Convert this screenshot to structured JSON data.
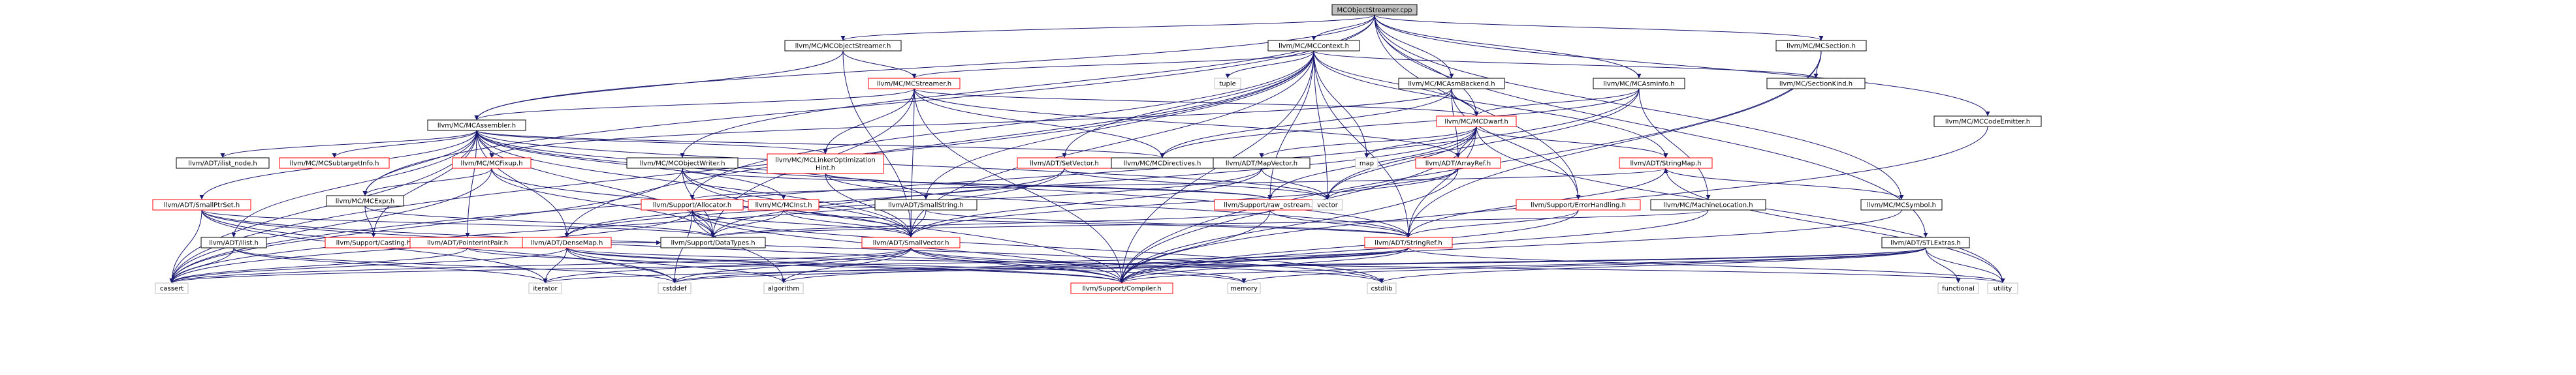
{
  "graph": {
    "colors": {
      "edge": "#191970",
      "root_fill": "#bfbfbf",
      "normal_border": "#000000",
      "red_border": "#ff0000",
      "gray_border": "#bfbfbf",
      "text": "#000000"
    },
    "nodes": [
      {
        "id": "root",
        "label": "MCObjectStreamer.cpp",
        "style": "root"
      },
      {
        "id": "mcos_h",
        "label": "llvm/MC/MCObjectStreamer.h",
        "style": "normal"
      },
      {
        "id": "mccontext",
        "label": "llvm/MC/MCContext.h",
        "style": "normal"
      },
      {
        "id": "mcsection",
        "label": "llvm/MC/MCSection.h",
        "style": "normal"
      },
      {
        "id": "mcstreamer",
        "label": "llvm/MC/MCStreamer.h",
        "style": "red"
      },
      {
        "id": "tuple",
        "label": "tuple",
        "style": "gray"
      },
      {
        "id": "mcasmbackend",
        "label": "llvm/MC/MCAsmBackend.h",
        "style": "normal"
      },
      {
        "id": "mcasminfo",
        "label": "llvm/MC/MCAsmInfo.h",
        "style": "normal"
      },
      {
        "id": "sectionkind",
        "label": "llvm/MC/SectionKind.h",
        "style": "normal"
      },
      {
        "id": "mcdwarf",
        "label": "llvm/MC/MCDwarf.h",
        "style": "red"
      },
      {
        "id": "mccodeemitter",
        "label": "llvm/MC/MCCodeEmitter.h",
        "style": "normal"
      },
      {
        "id": "mcassembler",
        "label": "llvm/MC/MCAssembler.h",
        "style": "normal"
      },
      {
        "id": "ilist_node",
        "label": "llvm/ADT/ilist_node.h",
        "style": "normal"
      },
      {
        "id": "mcsubtarget",
        "label": "llvm/MC/MCSubtargetInfo.h",
        "style": "red"
      },
      {
        "id": "mcfixup",
        "label": "llvm/MC/MCFixup.h",
        "style": "red"
      },
      {
        "id": "mcobjectwriter",
        "label": "llvm/MC/MCObjectWriter.h",
        "style": "normal"
      },
      {
        "id": "mclinkeropt",
        "label": "llvm/MC/MCLinkerOptimization\nHint.h",
        "style": "red"
      },
      {
        "id": "setvector",
        "label": "llvm/ADT/SetVector.h",
        "style": "red"
      },
      {
        "id": "mcdirectives",
        "label": "llvm/MC/MCDirectives.h",
        "style": "normal"
      },
      {
        "id": "mapvector",
        "label": "llvm/ADT/MapVector.h",
        "style": "normal"
      },
      {
        "id": "map",
        "label": "map",
        "style": "gray"
      },
      {
        "id": "arrayref",
        "label": "llvm/ADT/ArrayRef.h",
        "style": "red"
      },
      {
        "id": "stringmap",
        "label": "llvm/ADT/StringMap.h",
        "style": "red"
      },
      {
        "id": "mcexpr",
        "label": "llvm/MC/MCExpr.h",
        "style": "normal"
      },
      {
        "id": "smallptrset",
        "label": "llvm/ADT/SmallPtrSet.h",
        "style": "red"
      },
      {
        "id": "allocator",
        "label": "llvm/Support/Allocator.h",
        "style": "red"
      },
      {
        "id": "mcinst",
        "label": "llvm/MC/MCInst.h",
        "style": "red"
      },
      {
        "id": "smallstring",
        "label": "llvm/ADT/SmallString.h",
        "style": "normal"
      },
      {
        "id": "raw_ostream",
        "label": "llvm/Support/raw_ostream.h",
        "style": "red"
      },
      {
        "id": "vector",
        "label": "vector",
        "style": "gray"
      },
      {
        "id": "errorhandling",
        "label": "llvm/Support/ErrorHandling.h",
        "style": "red"
      },
      {
        "id": "machinelocation",
        "label": "llvm/MC/MachineLocation.h",
        "style": "normal"
      },
      {
        "id": "mcsymbol",
        "label": "llvm/MC/MCSymbol.h",
        "style": "normal"
      },
      {
        "id": "ilist",
        "label": "llvm/ADT/ilist.h",
        "style": "normal"
      },
      {
        "id": "casting",
        "label": "llvm/Support/Casting.h",
        "style": "red"
      },
      {
        "id": "pointerintpair",
        "label": "llvm/ADT/PointerIntPair.h",
        "style": "red"
      },
      {
        "id": "densemap",
        "label": "llvm/ADT/DenseMap.h",
        "style": "red"
      },
      {
        "id": "datatypes",
        "label": "llvm/Support/DataTypes.h",
        "style": "normal"
      },
      {
        "id": "smallvector",
        "label": "llvm/ADT/SmallVector.h",
        "style": "red"
      },
      {
        "id": "stringref",
        "label": "llvm/ADT/StringRef.h",
        "style": "red"
      },
      {
        "id": "stlextras",
        "label": "llvm/ADT/STLExtras.h",
        "style": "normal"
      },
      {
        "id": "cassert",
        "label": "cassert",
        "style": "gray"
      },
      {
        "id": "iterator",
        "label": "iterator",
        "style": "gray"
      },
      {
        "id": "cstddef",
        "label": "cstddef",
        "style": "gray"
      },
      {
        "id": "algorithm",
        "label": "algorithm",
        "style": "gray"
      },
      {
        "id": "compiler",
        "label": "llvm/Support/Compiler.h",
        "style": "red"
      },
      {
        "id": "memory",
        "label": "memory",
        "style": "gray"
      },
      {
        "id": "cstdlib",
        "label": "cstdlib",
        "style": "gray"
      },
      {
        "id": "functional",
        "label": "functional",
        "style": "gray"
      },
      {
        "id": "utility",
        "label": "utility",
        "style": "gray"
      }
    ],
    "edges": [
      [
        "root",
        "mcos_h"
      ],
      [
        "root",
        "mccontext"
      ],
      [
        "root",
        "mcsection"
      ],
      [
        "root",
        "mcassembler"
      ],
      [
        "root",
        "mcasmbackend"
      ],
      [
        "root",
        "mcasminfo"
      ],
      [
        "root",
        "mcdwarf"
      ],
      [
        "root",
        "mccodeemitter"
      ],
      [
        "root",
        "mcobjectwriter"
      ],
      [
        "root",
        "mcsymbol"
      ],
      [
        "root",
        "mcexpr"
      ],
      [
        "root",
        "errorhandling"
      ],
      [
        "root",
        "stlextras"
      ],
      [
        "mcos_h",
        "mcstreamer"
      ],
      [
        "mcos_h",
        "mcassembler"
      ],
      [
        "mcos_h",
        "smallvector"
      ],
      [
        "mccontext",
        "mcstreamer"
      ],
      [
        "mccontext",
        "tuple"
      ],
      [
        "mccontext",
        "sectionkind"
      ],
      [
        "mccontext",
        "mcdwarf"
      ],
      [
        "mccontext",
        "setvector"
      ],
      [
        "mccontext",
        "map"
      ],
      [
        "mccontext",
        "vector"
      ],
      [
        "mccontext",
        "stringmap"
      ],
      [
        "mccontext",
        "allocator"
      ],
      [
        "mccontext",
        "smallstring"
      ],
      [
        "mccontext",
        "densemap"
      ],
      [
        "mccontext",
        "raw_ostream"
      ],
      [
        "mccontext",
        "stringref"
      ],
      [
        "mccontext",
        "compiler"
      ],
      [
        "mccontext",
        "cassert"
      ],
      [
        "mccontext",
        "smallvector"
      ],
      [
        "mcsection",
        "sectionkind"
      ],
      [
        "mcsection",
        "stringref"
      ],
      [
        "mcsection",
        "compiler"
      ],
      [
        "mcstreamer",
        "mcassembler"
      ],
      [
        "mcstreamer",
        "mcdwarf"
      ],
      [
        "mcstreamer",
        "mclinkeropt"
      ],
      [
        "mcstreamer",
        "mcdirectives"
      ],
      [
        "mcstreamer",
        "arrayref"
      ],
      [
        "mcstreamer",
        "datatypes"
      ],
      [
        "mcstreamer",
        "smallvector"
      ],
      [
        "mcstreamer",
        "compiler"
      ],
      [
        "mcasmbackend",
        "mcdwarf"
      ],
      [
        "mcasmbackend",
        "mcdirectives"
      ],
      [
        "mcasmbackend",
        "arrayref"
      ],
      [
        "mcasmbackend",
        "mcfixup"
      ],
      [
        "mcasmbackend",
        "errorhandling"
      ],
      [
        "mcasminfo",
        "mcdwarf"
      ],
      [
        "mcasminfo",
        "mcdirectives"
      ],
      [
        "mcasminfo",
        "machinelocation"
      ],
      [
        "mcasminfo",
        "vector"
      ],
      [
        "mcasminfo",
        "cassert"
      ],
      [
        "mcdwarf",
        "map"
      ],
      [
        "mcdwarf",
        "mapvector"
      ],
      [
        "mcdwarf",
        "arrayref"
      ],
      [
        "mcdwarf",
        "stringmap"
      ],
      [
        "mcdwarf",
        "raw_ostream"
      ],
      [
        "mcdwarf",
        "vector"
      ],
      [
        "mcdwarf",
        "stringref"
      ],
      [
        "mcdwarf",
        "compiler"
      ],
      [
        "mcdwarf",
        "utility"
      ],
      [
        "mcdwarf",
        "datatypes"
      ],
      [
        "mccodeemitter",
        "compiler"
      ],
      [
        "mcassembler",
        "ilist_node"
      ],
      [
        "mcassembler",
        "mcsubtarget"
      ],
      [
        "mcassembler",
        "mcfixup"
      ],
      [
        "mcassembler",
        "mcinst"
      ],
      [
        "mcassembler",
        "mclinkeropt"
      ],
      [
        "mcassembler",
        "mcdirectives"
      ],
      [
        "mcassembler",
        "smallptrset"
      ],
      [
        "mcassembler",
        "mcexpr"
      ],
      [
        "mcassembler",
        "ilist"
      ],
      [
        "mcassembler",
        "casting"
      ],
      [
        "mcassembler",
        "pointerintpair"
      ],
      [
        "mcassembler",
        "densemap"
      ],
      [
        "mcassembler",
        "datatypes"
      ],
      [
        "mcassembler",
        "smallvector"
      ],
      [
        "mcassembler",
        "smallstring"
      ],
      [
        "mcassembler",
        "vector"
      ],
      [
        "mcassembler",
        "stringref"
      ],
      [
        "mcassembler",
        "cassert"
      ],
      [
        "mcfixup",
        "mcexpr"
      ],
      [
        "mcfixup",
        "datatypes"
      ],
      [
        "mcfixup",
        "cassert"
      ],
      [
        "mcfixup",
        "smallvector"
      ],
      [
        "mcobjectwriter",
        "raw_ostream"
      ],
      [
        "mcobjectwriter",
        "compiler"
      ],
      [
        "mcobjectwriter",
        "datatypes"
      ],
      [
        "mcobjectwriter",
        "cassert"
      ],
      [
        "mcobjectwriter",
        "smallvector"
      ],
      [
        "mclinkeropt",
        "raw_ostream"
      ],
      [
        "mclinkeropt",
        "stringref"
      ],
      [
        "mclinkeropt",
        "smallvector"
      ],
      [
        "setvector",
        "densemap"
      ],
      [
        "setvector",
        "cassert"
      ],
      [
        "setvector",
        "vector"
      ],
      [
        "mapvector",
        "densemap"
      ],
      [
        "mapvector",
        "smallvector"
      ],
      [
        "mapvector",
        "vector"
      ],
      [
        "arrayref",
        "smallvector"
      ],
      [
        "arrayref",
        "vector"
      ],
      [
        "arrayref",
        "compiler"
      ],
      [
        "stringmap",
        "stringref"
      ],
      [
        "stringmap",
        "allocator"
      ],
      [
        "stringmap",
        "utility"
      ],
      [
        "mcexpr",
        "casting"
      ],
      [
        "mcexpr",
        "datatypes"
      ],
      [
        "smallptrset",
        "compiler"
      ],
      [
        "smallptrset",
        "datatypes"
      ],
      [
        "smallptrset",
        "cassert"
      ],
      [
        "smallptrset",
        "iterator"
      ],
      [
        "smallptrset",
        "cstddef"
      ],
      [
        "smallptrset",
        "cstdlib"
      ],
      [
        "allocator",
        "smallvector"
      ],
      [
        "allocator",
        "datatypes"
      ],
      [
        "allocator",
        "compiler"
      ],
      [
        "allocator",
        "algorithm"
      ],
      [
        "allocator",
        "cassert"
      ],
      [
        "allocator",
        "cstddef"
      ],
      [
        "allocator",
        "cstdlib"
      ],
      [
        "mcinst",
        "smallvector"
      ],
      [
        "mcinst",
        "stringref"
      ],
      [
        "mcinst",
        "datatypes"
      ],
      [
        "smallstring",
        "smallvector"
      ],
      [
        "smallstring",
        "stringref"
      ],
      [
        "raw_ostream",
        "stringref"
      ],
      [
        "raw_ostream",
        "compiler"
      ],
      [
        "raw_ostream",
        "datatypes"
      ],
      [
        "errorhandling",
        "stringref"
      ],
      [
        "errorhandling",
        "compiler"
      ],
      [
        "machinelocation",
        "datatypes"
      ],
      [
        "machinelocation",
        "compiler"
      ],
      [
        "mcsymbol",
        "stringmap"
      ],
      [
        "mcsymbol",
        "compiler"
      ],
      [
        "ilist",
        "iterator"
      ],
      [
        "ilist",
        "cassert"
      ],
      [
        "ilist",
        "cstddef"
      ],
      [
        "pointerintpair",
        "compiler"
      ],
      [
        "pointerintpair",
        "cassert"
      ],
      [
        "pointerintpair",
        "datatypes"
      ],
      [
        "densemap",
        "compiler"
      ],
      [
        "densemap",
        "memory"
      ],
      [
        "densemap",
        "utility"
      ],
      [
        "densemap",
        "algorithm"
      ],
      [
        "densemap",
        "iterator"
      ],
      [
        "densemap",
        "cstddef"
      ],
      [
        "densemap",
        "cassert"
      ],
      [
        "densemap",
        "datatypes"
      ],
      [
        "smallvector",
        "compiler"
      ],
      [
        "smallvector",
        "algorithm"
      ],
      [
        "smallvector",
        "cassert"
      ],
      [
        "smallvector",
        "cstddef"
      ],
      [
        "smallvector",
        "cstdlib"
      ],
      [
        "smallvector",
        "iterator"
      ],
      [
        "smallvector",
        "memory"
      ],
      [
        "stringref",
        "compiler"
      ],
      [
        "stringref",
        "algorithm"
      ],
      [
        "stringref",
        "cassert"
      ],
      [
        "stringref",
        "cstddef"
      ],
      [
        "stringref",
        "utility"
      ],
      [
        "stlextras",
        "functional"
      ],
      [
        "stlextras",
        "utility"
      ],
      [
        "stlextras",
        "cstddef"
      ],
      [
        "stlextras",
        "iterator"
      ],
      [
        "stlextras",
        "compiler"
      ],
      [
        "stlextras",
        "memory"
      ],
      [
        "stlextras",
        "cstdlib"
      ]
    ]
  }
}
